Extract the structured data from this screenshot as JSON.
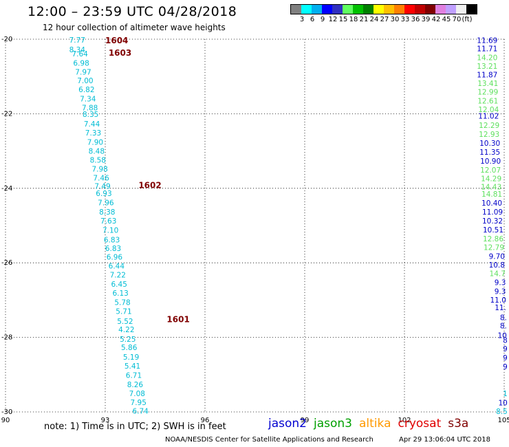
{
  "title": "12:00 – 23:59 UTC 04/28/2018",
  "subtitle": "12 hour collection of altimeter wave heights",
  "legend": {
    "colors": [
      "#808080",
      "#00ffff",
      "#00b0f0",
      "#0000ff",
      "#3030c0",
      "#60ff60",
      "#00c000",
      "#008000",
      "#ffff00",
      "#ffc000",
      "#ff8000",
      "#ff0000",
      "#c00000",
      "#800000",
      "#e080e0",
      "#c0a0ff",
      "#f0f0f0",
      "#000000"
    ],
    "labels": [
      "3",
      "6",
      "9",
      "12",
      "15",
      "18",
      "21",
      "24",
      "27",
      "30",
      "33",
      "36",
      "39",
      "42",
      "45",
      "70",
      "(ft)"
    ]
  },
  "axes": {
    "y_ticks": [
      "-20",
      "-22",
      "-24",
      "-26",
      "-28",
      "-30"
    ],
    "x_ticks": [
      "90",
      "93",
      "96",
      "99",
      "102",
      "105"
    ]
  },
  "chart_data": {
    "type": "scatter",
    "title": "12 hour collection of altimeter wave heights",
    "xlabel": "",
    "ylabel": "",
    "xlim": [
      90,
      105
    ],
    "ylim": [
      -30,
      -20
    ],
    "grid": true,
    "units": "ft",
    "track_labels": [
      {
        "text": "1604",
        "lon": 93.0,
        "lat": -20.02
      },
      {
        "text": "1603",
        "lon": 93.1,
        "lat": -20.35
      },
      {
        "text": "1602",
        "lon": 94.0,
        "lat": -23.9
      },
      {
        "text": "1601",
        "lon": 94.85,
        "lat": -27.5
      }
    ],
    "west_track": {
      "color": "#00bcd4",
      "points": [
        {
          "lon": 92.4,
          "lat": -20.02,
          "v": "7.77"
        },
        {
          "lon": 92.4,
          "lat": -20.28,
          "v": "8.34"
        },
        {
          "lon": 92.48,
          "lat": -20.39,
          "v": "7.64"
        },
        {
          "lon": 92.52,
          "lat": -20.64,
          "v": "6.98"
        },
        {
          "lon": 92.58,
          "lat": -20.88,
          "v": "7.97"
        },
        {
          "lon": 92.64,
          "lat": -21.11,
          "v": "7.00"
        },
        {
          "lon": 92.68,
          "lat": -21.35,
          "v": "6.82"
        },
        {
          "lon": 92.72,
          "lat": -21.6,
          "v": "7.34"
        },
        {
          "lon": 92.78,
          "lat": -21.84,
          "v": "7.88"
        },
        {
          "lon": 92.8,
          "lat": -22.01,
          "v": "8.35"
        },
        {
          "lon": 92.84,
          "lat": -22.27,
          "v": "7.44"
        },
        {
          "lon": 92.88,
          "lat": -22.51,
          "v": "7.33"
        },
        {
          "lon": 92.94,
          "lat": -22.76,
          "v": "7.90"
        },
        {
          "lon": 92.98,
          "lat": -23.0,
          "v": "8.48"
        },
        {
          "lon": 93.02,
          "lat": -23.24,
          "v": "8.58"
        },
        {
          "lon": 93.08,
          "lat": -23.48,
          "v": "7.98"
        },
        {
          "lon": 93.12,
          "lat": -23.72,
          "v": "7.46"
        },
        {
          "lon": 93.16,
          "lat": -23.94,
          "v": "7.49"
        },
        {
          "lon": 93.2,
          "lat": -24.13,
          "v": "6.93"
        },
        {
          "lon": 93.26,
          "lat": -24.38,
          "v": "7.96"
        },
        {
          "lon": 93.3,
          "lat": -24.63,
          "v": "8.38"
        },
        {
          "lon": 93.34,
          "lat": -24.87,
          "v": "7.63"
        },
        {
          "lon": 93.4,
          "lat": -25.12,
          "v": "7.10"
        },
        {
          "lon": 93.44,
          "lat": -25.38,
          "v": "6.83"
        },
        {
          "lon": 93.48,
          "lat": -25.61,
          "v": "6.83"
        },
        {
          "lon": 93.52,
          "lat": -25.84,
          "v": "6.96"
        },
        {
          "lon": 93.58,
          "lat": -26.08,
          "v": "6.44"
        },
        {
          "lon": 93.62,
          "lat": -26.32,
          "v": "7.22"
        },
        {
          "lon": 93.66,
          "lat": -26.57,
          "v": "6.45"
        },
        {
          "lon": 93.7,
          "lat": -26.81,
          "v": "6.13"
        },
        {
          "lon": 93.76,
          "lat": -27.06,
          "v": "5.78"
        },
        {
          "lon": 93.8,
          "lat": -27.3,
          "v": "5.71"
        },
        {
          "lon": 93.84,
          "lat": -27.56,
          "v": "5.52"
        },
        {
          "lon": 93.88,
          "lat": -27.79,
          "v": "4.22"
        },
        {
          "lon": 93.92,
          "lat": -28.04,
          "v": "5.25"
        },
        {
          "lon": 93.96,
          "lat": -28.27,
          "v": "5.86"
        },
        {
          "lon": 94.02,
          "lat": -28.52,
          "v": "5.19"
        },
        {
          "lon": 94.06,
          "lat": -28.76,
          "v": "5.41"
        },
        {
          "lon": 94.1,
          "lat": -29.01,
          "v": "6.71"
        },
        {
          "lon": 94.14,
          "lat": -29.26,
          "v": "8.26"
        },
        {
          "lon": 94.2,
          "lat": -29.5,
          "v": "7.08"
        },
        {
          "lon": 94.24,
          "lat": -29.74,
          "v": "7.95"
        },
        {
          "lon": 94.3,
          "lat": -29.97,
          "v": "6.74"
        }
      ]
    },
    "east_track": {
      "points": [
        {
          "lon": 104.8,
          "lat": -20.03,
          "v": "11.69",
          "c": "#0000c8"
        },
        {
          "lon": 104.8,
          "lat": -20.25,
          "v": "11.71",
          "c": "#0000c8"
        },
        {
          "lon": 104.8,
          "lat": -20.49,
          "v": "14.20",
          "c": "#5ee05e"
        },
        {
          "lon": 104.8,
          "lat": -20.72,
          "v": "13.21",
          "c": "#5ee05e"
        },
        {
          "lon": 104.8,
          "lat": -20.95,
          "v": "11.87",
          "c": "#0000c8"
        },
        {
          "lon": 104.82,
          "lat": -21.18,
          "v": "13.41",
          "c": "#5ee05e"
        },
        {
          "lon": 104.82,
          "lat": -21.41,
          "v": "12.99",
          "c": "#5ee05e"
        },
        {
          "lon": 104.82,
          "lat": -21.65,
          "v": "12.61",
          "c": "#5ee05e"
        },
        {
          "lon": 104.84,
          "lat": -21.88,
          "v": "12.04",
          "c": "#5ee05e"
        },
        {
          "lon": 104.84,
          "lat": -22.06,
          "v": "11.02",
          "c": "#0000c8"
        },
        {
          "lon": 104.86,
          "lat": -22.31,
          "v": "12.29",
          "c": "#5ee05e"
        },
        {
          "lon": 104.86,
          "lat": -22.55,
          "v": "12.93",
          "c": "#5ee05e"
        },
        {
          "lon": 104.88,
          "lat": -22.79,
          "v": "10.30",
          "c": "#0000c8"
        },
        {
          "lon": 104.88,
          "lat": -23.03,
          "v": "11.35",
          "c": "#0000c8"
        },
        {
          "lon": 104.9,
          "lat": -23.27,
          "v": "10.90",
          "c": "#0000c8"
        },
        {
          "lon": 104.9,
          "lat": -23.51,
          "v": "12.07",
          "c": "#5ee05e"
        },
        {
          "lon": 104.92,
          "lat": -23.74,
          "v": "14.29",
          "c": "#5ee05e"
        },
        {
          "lon": 104.92,
          "lat": -23.96,
          "v": "14.43",
          "c": "#5ee05e"
        },
        {
          "lon": 104.94,
          "lat": -24.15,
          "v": "14.81",
          "c": "#5ee05e"
        },
        {
          "lon": 104.94,
          "lat": -24.39,
          "v": "10.40",
          "c": "#0000c8"
        },
        {
          "lon": 104.96,
          "lat": -24.63,
          "v": "11.09",
          "c": "#0000c8"
        },
        {
          "lon": 104.96,
          "lat": -24.87,
          "v": "10.32",
          "c": "#0000c8"
        },
        {
          "lon": 104.98,
          "lat": -25.11,
          "v": "10.51",
          "c": "#0000c8"
        },
        {
          "lon": 104.98,
          "lat": -25.35,
          "v": "12.86",
          "c": "#5ee05e"
        },
        {
          "lon": 105.0,
          "lat": -25.58,
          "v": "12.79",
          "c": "#5ee05e"
        },
        {
          "lon": 105.02,
          "lat": -25.82,
          "v": "9.70",
          "c": "#0000c8"
        },
        {
          "lon": 105.02,
          "lat": -26.05,
          "v": "10.8",
          "c": "#0000c8"
        },
        {
          "lon": 105.04,
          "lat": -26.28,
          "v": "14.7",
          "c": "#5ee05e"
        },
        {
          "lon": 105.05,
          "lat": -26.52,
          "v": "9.3",
          "c": "#0000c8"
        },
        {
          "lon": 105.05,
          "lat": -26.76,
          "v": "9.3",
          "c": "#0000c8"
        },
        {
          "lon": 105.06,
          "lat": -26.99,
          "v": "11.0",
          "c": "#0000c8"
        },
        {
          "lon": 105.06,
          "lat": -27.2,
          "v": "11.",
          "c": "#0000c8"
        },
        {
          "lon": 105.08,
          "lat": -27.46,
          "v": "8.",
          "c": "#0000c8"
        },
        {
          "lon": 105.08,
          "lat": -27.68,
          "v": "8.",
          "c": "#0000c8"
        },
        {
          "lon": 105.08,
          "lat": -27.94,
          "v": "10",
          "c": "#0000c8"
        },
        {
          "lon": 105.1,
          "lat": -28.07,
          "v": "8",
          "c": "#0000c8"
        },
        {
          "lon": 105.1,
          "lat": -28.3,
          "v": "9",
          "c": "#0000c8"
        },
        {
          "lon": 105.1,
          "lat": -28.54,
          "v": "9",
          "c": "#0000c8"
        },
        {
          "lon": 105.1,
          "lat": -28.78,
          "v": "9",
          "c": "#0000c8"
        },
        {
          "lon": 105.1,
          "lat": -29.5,
          "v": "1",
          "c": "#00bcd4"
        },
        {
          "lon": 105.1,
          "lat": -29.75,
          "v": "10",
          "c": "#0000c8"
        },
        {
          "lon": 105.1,
          "lat": -29.98,
          "v": "8.5",
          "c": "#00bcd4"
        }
      ]
    }
  },
  "note": "note:  1) Time is in UTC;  2) SWH is in feet",
  "satellites": [
    {
      "name": "jason2",
      "color": "#0000d0"
    },
    {
      "name": "jason3",
      "color": "#00a000"
    },
    {
      "name": "altika",
      "color": "#ff9900"
    },
    {
      "name": "cryosat",
      "color": "#e00000"
    },
    {
      "name": "s3a",
      "color": "#800000"
    }
  ],
  "credit": "NOAA/NESDIS Center for Satellite Applications and Research",
  "timestamp": "Apr 29 13:06:04 UTC 2018"
}
